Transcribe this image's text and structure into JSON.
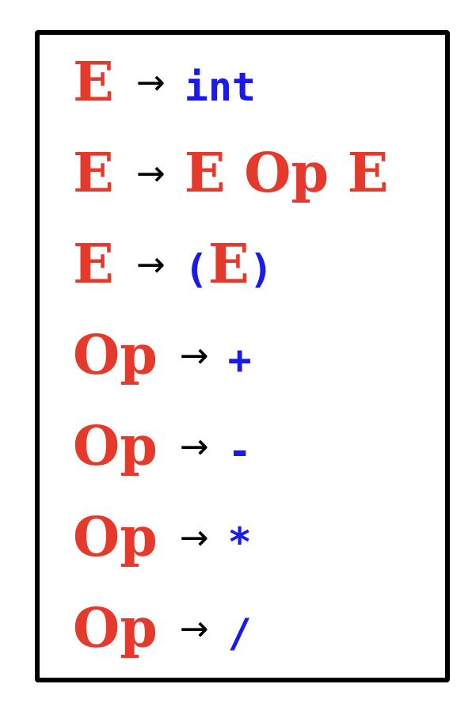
{
  "colors": {
    "nonterminal": "#e53a2b",
    "terminal": "#1a1aee",
    "arrow": "#000000",
    "border": "#000000"
  },
  "arrow_symbol": "→",
  "rules": [
    {
      "lhs": "E",
      "rhs": [
        {
          "kind": "terminal",
          "text": "int"
        }
      ]
    },
    {
      "lhs": "E",
      "rhs": [
        {
          "kind": "nonterminal",
          "text": "E Op E"
        }
      ]
    },
    {
      "lhs": "E",
      "rhs": [
        {
          "kind": "terminal",
          "text": "("
        },
        {
          "kind": "nonterminal",
          "text": "E"
        },
        {
          "kind": "terminal",
          "text": ")"
        }
      ]
    },
    {
      "lhs": "Op",
      "rhs": [
        {
          "kind": "terminal",
          "text": "+"
        }
      ]
    },
    {
      "lhs": "Op",
      "rhs": [
        {
          "kind": "terminal",
          "text": "-"
        }
      ]
    },
    {
      "lhs": "Op",
      "rhs": [
        {
          "kind": "terminal",
          "text": "*"
        }
      ]
    },
    {
      "lhs": "Op",
      "rhs": [
        {
          "kind": "terminal",
          "text": "/"
        }
      ]
    }
  ]
}
